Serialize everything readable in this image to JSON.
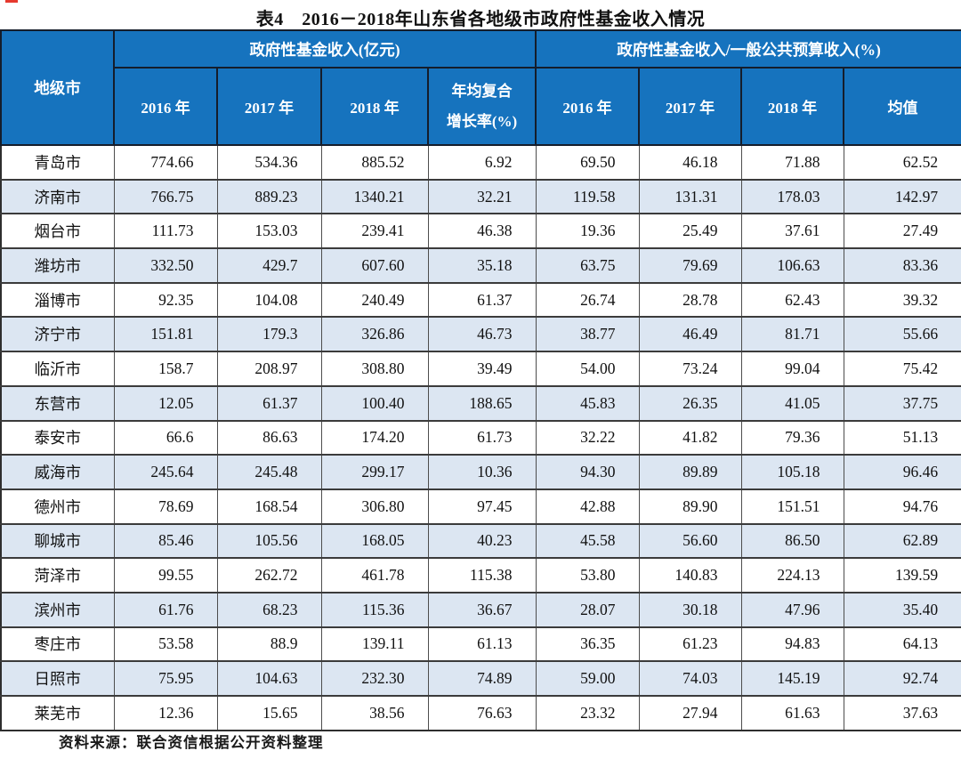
{
  "page": {
    "title": "表4　2016－2018年山东省各地级市政府性基金收入情况",
    "source_note": "资料来源：联合资信根据公开资料整理"
  },
  "colors": {
    "header_bg": "#1673BE",
    "header_text": "#FFFFFF",
    "row_alt_bg": "#DCE6F2",
    "grid_line": "#3B3B3B",
    "red_mark": "#E6392E"
  },
  "table": {
    "corner_header": "地级市",
    "groups": [
      {
        "label": "政府性基金收入(亿元)",
        "columns": [
          "2016 年",
          "2017 年",
          "2018 年",
          "年均复合\n增长率(%)"
        ]
      },
      {
        "label": "政府性基金收入/一般公共预算收入(%)",
        "columns": [
          "2016 年",
          "2017 年",
          "2018 年",
          "均值"
        ]
      }
    ],
    "rows": [
      {
        "city": "青岛市",
        "values": [
          "774.66",
          "534.36",
          "885.52",
          "6.92",
          "69.50",
          "46.18",
          "71.88",
          "62.52"
        ]
      },
      {
        "city": "济南市",
        "values": [
          "766.75",
          "889.23",
          "1340.21",
          "32.21",
          "119.58",
          "131.31",
          "178.03",
          "142.97"
        ]
      },
      {
        "city": "烟台市",
        "values": [
          "111.73",
          "153.03",
          "239.41",
          "46.38",
          "19.36",
          "25.49",
          "37.61",
          "27.49"
        ]
      },
      {
        "city": "潍坊市",
        "values": [
          "332.50",
          "429.7",
          "607.60",
          "35.18",
          "63.75",
          "79.69",
          "106.63",
          "83.36"
        ]
      },
      {
        "city": "淄博市",
        "values": [
          "92.35",
          "104.08",
          "240.49",
          "61.37",
          "26.74",
          "28.78",
          "62.43",
          "39.32"
        ]
      },
      {
        "city": "济宁市",
        "values": [
          "151.81",
          "179.3",
          "326.86",
          "46.73",
          "38.77",
          "46.49",
          "81.71",
          "55.66"
        ]
      },
      {
        "city": "临沂市",
        "values": [
          "158.7",
          "208.97",
          "308.80",
          "39.49",
          "54.00",
          "73.24",
          "99.04",
          "75.42"
        ]
      },
      {
        "city": "东营市",
        "values": [
          "12.05",
          "61.37",
          "100.40",
          "188.65",
          "45.83",
          "26.35",
          "41.05",
          "37.75"
        ]
      },
      {
        "city": "泰安市",
        "values": [
          "66.6",
          "86.63",
          "174.20",
          "61.73",
          "32.22",
          "41.82",
          "79.36",
          "51.13"
        ]
      },
      {
        "city": "威海市",
        "values": [
          "245.64",
          "245.48",
          "299.17",
          "10.36",
          "94.30",
          "89.89",
          "105.18",
          "96.46"
        ]
      },
      {
        "city": "德州市",
        "values": [
          "78.69",
          "168.54",
          "306.80",
          "97.45",
          "42.88",
          "89.90",
          "151.51",
          "94.76"
        ]
      },
      {
        "city": "聊城市",
        "values": [
          "85.46",
          "105.56",
          "168.05",
          "40.23",
          "45.58",
          "56.60",
          "86.50",
          "62.89"
        ]
      },
      {
        "city": "菏泽市",
        "values": [
          "99.55",
          "262.72",
          "461.78",
          "115.38",
          "53.80",
          "140.83",
          "224.13",
          "139.59"
        ]
      },
      {
        "city": "滨州市",
        "values": [
          "61.76",
          "68.23",
          "115.36",
          "36.67",
          "28.07",
          "30.18",
          "47.96",
          "35.40"
        ]
      },
      {
        "city": "枣庄市",
        "values": [
          "53.58",
          "88.9",
          "139.11",
          "61.13",
          "36.35",
          "61.23",
          "94.83",
          "64.13"
        ]
      },
      {
        "city": "日照市",
        "values": [
          "75.95",
          "104.63",
          "232.30",
          "74.89",
          "59.00",
          "74.03",
          "145.19",
          "92.74"
        ]
      },
      {
        "city": "莱芜市",
        "values": [
          "12.36",
          "15.65",
          "38.56",
          "76.63",
          "23.32",
          "27.94",
          "61.63",
          "37.63"
        ]
      }
    ]
  },
  "chart_data": {
    "type": "table",
    "title": "表4 2016－2018年山东省各地级市政府性基金收入情况",
    "columns": [
      "地级市",
      "政府性基金收入(亿元) 2016年",
      "政府性基金收入(亿元) 2017年",
      "政府性基金收入(亿元) 2018年",
      "年均复合增长率(%)",
      "政府性基金收入/一般公共预算收入(%) 2016年",
      "政府性基金收入/一般公共预算收入(%) 2017年",
      "政府性基金收入/一般公共预算收入(%) 2018年",
      "均值"
    ],
    "rows": [
      [
        "青岛市",
        774.66,
        534.36,
        885.52,
        6.92,
        69.5,
        46.18,
        71.88,
        62.52
      ],
      [
        "济南市",
        766.75,
        889.23,
        1340.21,
        32.21,
        119.58,
        131.31,
        178.03,
        142.97
      ],
      [
        "烟台市",
        111.73,
        153.03,
        239.41,
        46.38,
        19.36,
        25.49,
        37.61,
        27.49
      ],
      [
        "潍坊市",
        332.5,
        429.7,
        607.6,
        35.18,
        63.75,
        79.69,
        106.63,
        83.36
      ],
      [
        "淄博市",
        92.35,
        104.08,
        240.49,
        61.37,
        26.74,
        28.78,
        62.43,
        39.32
      ],
      [
        "济宁市",
        151.81,
        179.3,
        326.86,
        46.73,
        38.77,
        46.49,
        81.71,
        55.66
      ],
      [
        "临沂市",
        158.7,
        208.97,
        308.8,
        39.49,
        54.0,
        73.24,
        99.04,
        75.42
      ],
      [
        "东营市",
        12.05,
        61.37,
        100.4,
        188.65,
        45.83,
        26.35,
        41.05,
        37.75
      ],
      [
        "泰安市",
        66.6,
        86.63,
        174.2,
        61.73,
        32.22,
        41.82,
        79.36,
        51.13
      ],
      [
        "威海市",
        245.64,
        245.48,
        299.17,
        10.36,
        94.3,
        89.89,
        105.18,
        96.46
      ],
      [
        "德州市",
        78.69,
        168.54,
        306.8,
        97.45,
        42.88,
        89.9,
        151.51,
        94.76
      ],
      [
        "聊城市",
        85.46,
        105.56,
        168.05,
        40.23,
        45.58,
        56.6,
        86.5,
        62.89
      ],
      [
        "菏泽市",
        99.55,
        262.72,
        461.78,
        115.38,
        53.8,
        140.83,
        224.13,
        139.59
      ],
      [
        "滨州市",
        61.76,
        68.23,
        115.36,
        36.67,
        28.07,
        30.18,
        47.96,
        35.4
      ],
      [
        "枣庄市",
        53.58,
        88.9,
        139.11,
        61.13,
        36.35,
        61.23,
        94.83,
        64.13
      ],
      [
        "日照市",
        75.95,
        104.63,
        232.3,
        74.89,
        59.0,
        74.03,
        145.19,
        92.74
      ],
      [
        "莱芜市",
        12.36,
        15.65,
        38.56,
        76.63,
        23.32,
        27.94,
        61.63,
        37.63
      ]
    ]
  }
}
